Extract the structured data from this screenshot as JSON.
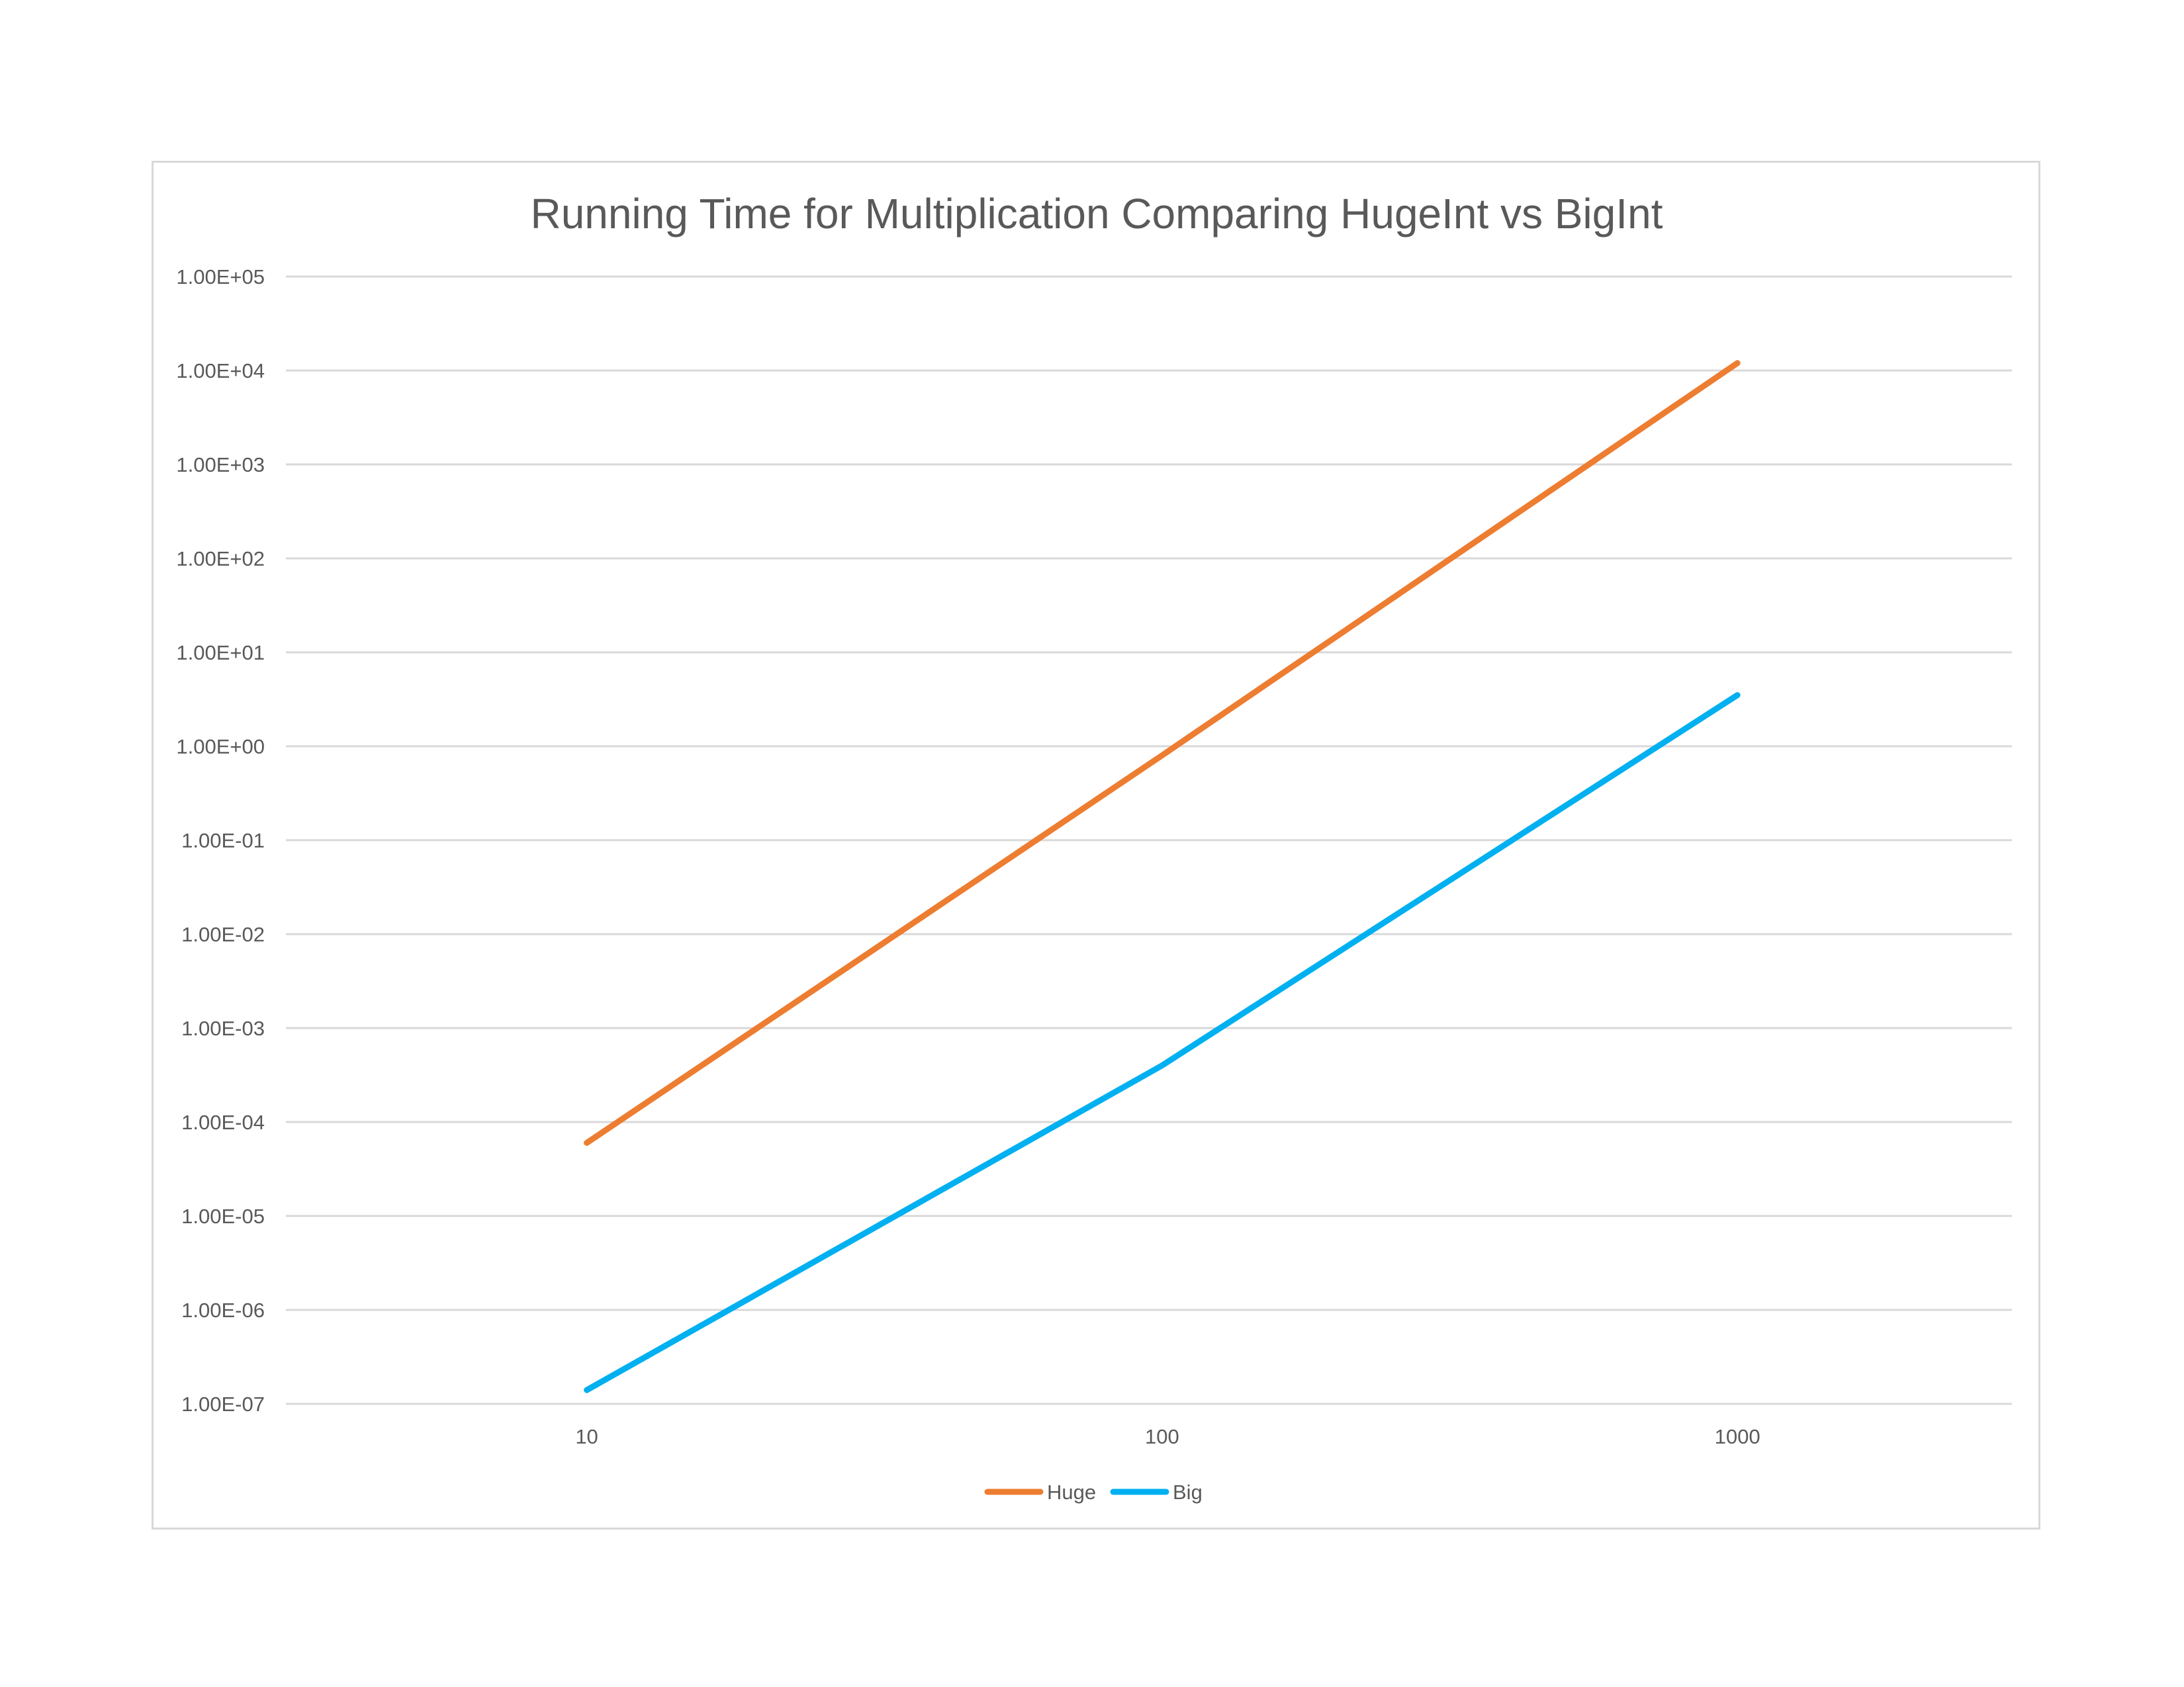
{
  "chart_data": {
    "type": "line",
    "title": "Running Time for Multiplication Comparing HugeInt vs BigInt",
    "xlabel": "",
    "ylabel": "",
    "x_scale": "log",
    "y_scale": "log",
    "x_ticks": [
      "10",
      "100",
      "1000"
    ],
    "y_ticks": [
      "1.00E+05",
      "1.00E+04",
      "1.00E+03",
      "1.00E+02",
      "1.00E+01",
      "1.00E+00",
      "1.00E-01",
      "1.00E-02",
      "1.00E-03",
      "1.00E-04",
      "1.00E-05",
      "1.00E-06",
      "1.00E-07"
    ],
    "xlim": [
      3,
      3000
    ],
    "ylim": [
      1e-07,
      100000.0
    ],
    "grid": "horizontal",
    "legend_position": "bottom",
    "x": [
      10,
      100,
      1000
    ],
    "series": [
      {
        "name": "Huge",
        "color": "#ED7D31",
        "values": [
          6e-05,
          0.8,
          12000
        ]
      },
      {
        "name": "Big",
        "color": "#00B0F0",
        "values": [
          1.4e-07,
          0.0004,
          3.5
        ]
      }
    ]
  }
}
